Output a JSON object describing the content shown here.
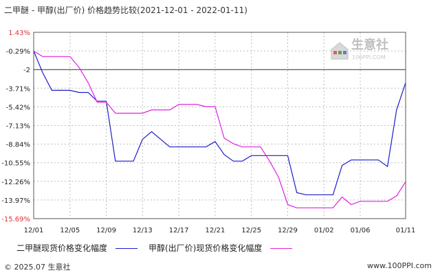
{
  "title": "二甲醚 - 甲醇(出厂价) 价格趋势比较(2021-12-01 - 2022-01-11)",
  "watermark": {
    "name": "生意社",
    "url": "100PPI.COM"
  },
  "footer": {
    "copyright": "© 2025.07 生意社",
    "site": "www.100PPI.com"
  },
  "chart_data": {
    "type": "line",
    "title": "二甲醚 - 甲醇(出厂价) 价格趋势比较(2021-12-01 - 2022-01-11)",
    "ylim": [
      -15.69,
      1.43
    ],
    "y_ticks": [
      "1.43%",
      "-0.29%",
      "-2",
      "-3.71%",
      "-5.42%",
      "-7.13%",
      "-8.84%",
      "-10.55%",
      "-12.26%",
      "-13.97%",
      "-15.69%"
    ],
    "x_ticks": [
      "12/01",
      "12/05",
      "12/09",
      "12/13",
      "12/17",
      "12/21",
      "12/25",
      "12/29",
      "01/02",
      "01/06",
      "01/11"
    ],
    "reference_line": -2,
    "x_dates": [
      "12/01",
      "12/02",
      "12/03",
      "12/04",
      "12/05",
      "12/06",
      "12/07",
      "12/08",
      "12/09",
      "12/10",
      "12/11",
      "12/12",
      "12/13",
      "12/14",
      "12/15",
      "12/16",
      "12/17",
      "12/18",
      "12/19",
      "12/20",
      "12/21",
      "12/22",
      "12/23",
      "12/24",
      "12/25",
      "12/26",
      "12/27",
      "12/28",
      "12/29",
      "12/30",
      "12/31",
      "01/01",
      "01/02",
      "01/03",
      "01/04",
      "01/05",
      "01/06",
      "01/07",
      "01/08",
      "01/09",
      "01/10",
      "01/11"
    ],
    "series": [
      {
        "name": "二甲醚现货价格变化幅度",
        "color": "#1a1acc",
        "values": [
          -0.29,
          -2.3,
          -3.9,
          -3.9,
          -3.9,
          -4.1,
          -4.1,
          -4.9,
          -4.9,
          -10.4,
          -10.4,
          -10.4,
          -8.4,
          -7.7,
          -8.4,
          -9.1,
          -9.1,
          -9.1,
          -9.1,
          -9.1,
          -8.6,
          -9.8,
          -10.4,
          -10.4,
          -9.9,
          -9.9,
          -9.9,
          -9.9,
          -9.9,
          -13.3,
          -13.5,
          -13.5,
          -13.5,
          -13.5,
          -10.8,
          -10.3,
          -10.3,
          -10.3,
          -10.3,
          -10.9,
          -5.7,
          -3.2
        ]
      },
      {
        "name": "甲醇(出厂价)现货价格变化幅度",
        "color": "#e020e0",
        "values": [
          -0.29,
          -0.8,
          -0.8,
          -0.8,
          -0.8,
          -1.8,
          -3.2,
          -5.0,
          -5.0,
          -6.0,
          -6.0,
          -6.0,
          -6.0,
          -5.7,
          -5.7,
          -5.7,
          -5.2,
          -5.2,
          -5.2,
          -5.4,
          -5.4,
          -8.3,
          -8.8,
          -9.1,
          -9.1,
          -9.1,
          -10.4,
          -11.9,
          -14.4,
          -14.7,
          -14.7,
          -14.7,
          -14.7,
          -14.7,
          -13.7,
          -14.4,
          -14.1,
          -14.1,
          -14.1,
          -14.1,
          -13.6,
          -12.3
        ]
      }
    ],
    "legend": "bottom"
  }
}
